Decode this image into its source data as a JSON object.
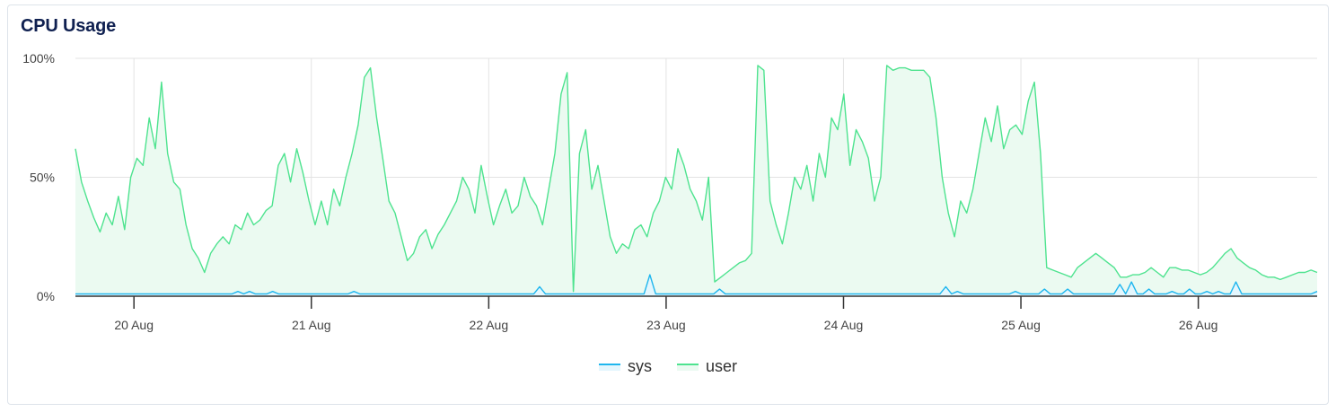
{
  "panel": {
    "title": "CPU Usage"
  },
  "colors": {
    "sys": "#1eb6ee",
    "sys_fill": "#e3f6fd",
    "user": "#4ee38f",
    "user_fill": "#ebfaf1",
    "grid": "#e3e3e3",
    "axis": "#333333"
  },
  "legend": [
    {
      "key": "sys",
      "label": "sys"
    },
    {
      "key": "user",
      "label": "user"
    }
  ],
  "chart_data": {
    "type": "area",
    "title": "CPU Usage",
    "xlabel": "",
    "ylabel": "",
    "ylim": [
      0,
      100
    ],
    "y_ticks": [
      "0%",
      "50%",
      "100%"
    ],
    "x_ticks": [
      "20 Aug",
      "21 Aug",
      "22 Aug",
      "23 Aug",
      "24 Aug",
      "25 Aug",
      "26 Aug"
    ],
    "x_range_days": [
      19.67,
      26.67
    ],
    "grid": true,
    "legend_position": "bottom",
    "sample_step_hours": 2,
    "series": [
      {
        "name": "user",
        "values": [
          62,
          48,
          40,
          33,
          27,
          35,
          30,
          42,
          28,
          50,
          58,
          55,
          75,
          62,
          90,
          60,
          48,
          45,
          30,
          20,
          16,
          10,
          18,
          22,
          25,
          22,
          30,
          28,
          35,
          30,
          32,
          36,
          38,
          55,
          60,
          48,
          62,
          52,
          40,
          30,
          40,
          30,
          45,
          38,
          50,
          60,
          72,
          92,
          96,
          75,
          58,
          40,
          35,
          25,
          15,
          18,
          25,
          28,
          20,
          26,
          30,
          35,
          40,
          50,
          45,
          35,
          55,
          42,
          30,
          38,
          45,
          35,
          38,
          50,
          42,
          38,
          30,
          45,
          60,
          85,
          94,
          2,
          60,
          70,
          45,
          55,
          40,
          25,
          18,
          22,
          20,
          28,
          30,
          25,
          35,
          40,
          50,
          45,
          62,
          55,
          45,
          40,
          32,
          50,
          6,
          8,
          10,
          12,
          14,
          15,
          18,
          97,
          95,
          40,
          30,
          22,
          35,
          50,
          45,
          55,
          40,
          60,
          50,
          75,
          70,
          85,
          55,
          70,
          65,
          58,
          40,
          50,
          97,
          95,
          96,
          96,
          95,
          95,
          95,
          92,
          75,
          50,
          35,
          25,
          40,
          35,
          45,
          60,
          75,
          65,
          80,
          62,
          70,
          72,
          68,
          82,
          90,
          60,
          12,
          11,
          10,
          9,
          8,
          12,
          14,
          16,
          18,
          16,
          14,
          12,
          8,
          8,
          9,
          9,
          10,
          12,
          10,
          8,
          12,
          12,
          11,
          11,
          10,
          9,
          10,
          12,
          15,
          18,
          20,
          16,
          14,
          12,
          11,
          9,
          8,
          8,
          7,
          8,
          9,
          10,
          10,
          11,
          10
        ]
      },
      {
        "name": "sys",
        "values": [
          1,
          1,
          1,
          1,
          1,
          1,
          1,
          1,
          1,
          1,
          1,
          1,
          1,
          1,
          1,
          1,
          1,
          1,
          1,
          1,
          1,
          1,
          1,
          1,
          1,
          1,
          1,
          1,
          2,
          1,
          2,
          1,
          1,
          1,
          2,
          1,
          1,
          1,
          1,
          1,
          1,
          1,
          1,
          1,
          1,
          1,
          1,
          1,
          2,
          1,
          1,
          1,
          1,
          1,
          1,
          1,
          1,
          1,
          1,
          1,
          1,
          1,
          1,
          1,
          1,
          1,
          1,
          1,
          1,
          1,
          1,
          1,
          1,
          1,
          1,
          1,
          1,
          1,
          1,
          1,
          4,
          1,
          1,
          1,
          1,
          1,
          1,
          1,
          1,
          1,
          1,
          1,
          1,
          1,
          1,
          1,
          1,
          1,
          1,
          9,
          1,
          1,
          1,
          1,
          1,
          1,
          1,
          1,
          1,
          1,
          1,
          3,
          1,
          1,
          1,
          1,
          1,
          1,
          1,
          1,
          1,
          1,
          1,
          1,
          1,
          1,
          1,
          1,
          1,
          1,
          1,
          1,
          1,
          1,
          1,
          1,
          1,
          1,
          1,
          1,
          1,
          1,
          1,
          1,
          1,
          1,
          1,
          1,
          1,
          1,
          4,
          1,
          2,
          1,
          1,
          1,
          1,
          1,
          1,
          1,
          1,
          1,
          2,
          1,
          1,
          1,
          1,
          3,
          1,
          1,
          1,
          3,
          1,
          1,
          1,
          1,
          1,
          1,
          1,
          1,
          5,
          1,
          6,
          1,
          1,
          3,
          1,
          1,
          1,
          2,
          1,
          1,
          3,
          1,
          1,
          2,
          1,
          2,
          1,
          1,
          6,
          1,
          1,
          1,
          1,
          1,
          1,
          1,
          1,
          1,
          1,
          1,
          1,
          1,
          2
        ]
      }
    ]
  }
}
